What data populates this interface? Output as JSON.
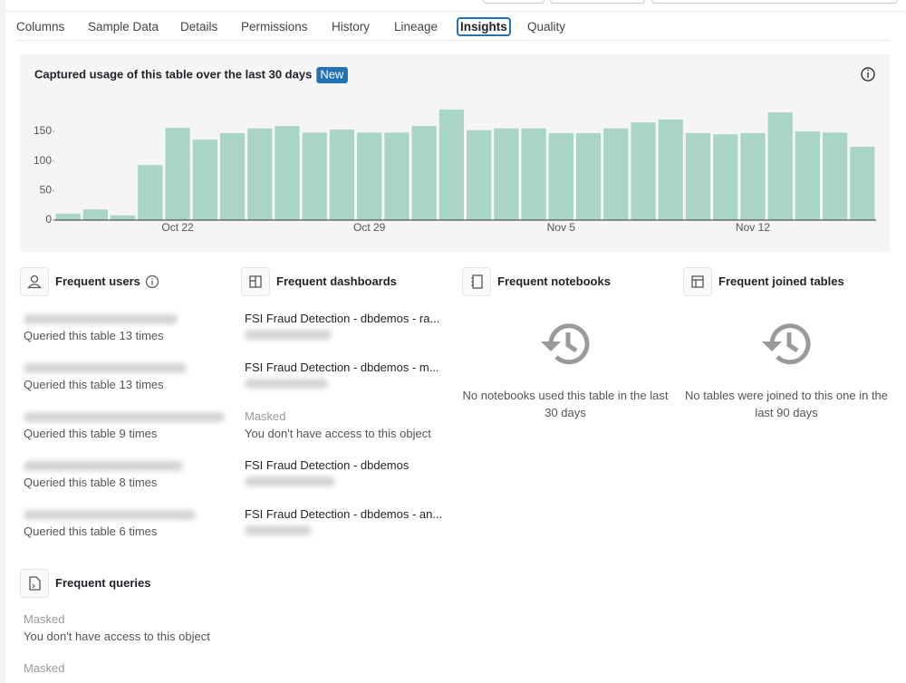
{
  "tabs": [
    "Columns",
    "Sample Data",
    "Details",
    "Permissions",
    "History",
    "Lineage",
    "Insights",
    "Quality"
  ],
  "chart_data": {
    "type": "bar",
    "title": "Captured usage of this table over the last 30 days",
    "badge": "New",
    "categories": [
      null,
      null,
      null,
      null,
      "Oct 22",
      null,
      null,
      null,
      null,
      null,
      null,
      "Oct 29",
      null,
      null,
      null,
      null,
      null,
      null,
      "Nov 5",
      null,
      null,
      null,
      null,
      null,
      null,
      "Nov 12",
      null,
      null,
      null,
      null
    ],
    "values": [
      11,
      18,
      8,
      93,
      156,
      136,
      147,
      155,
      159,
      148,
      153,
      148,
      148,
      159,
      187,
      152,
      155,
      155,
      147,
      147,
      155,
      165,
      170,
      147,
      145,
      147,
      182,
      150,
      148,
      124
    ],
    "color": "#a8d5c5",
    "ylim": [
      0,
      195
    ],
    "yticks": [
      0,
      50,
      100,
      150
    ]
  },
  "frequent_users": {
    "title": "Frequent users",
    "items": [
      "Queried this table 13 times",
      "Queried this table 13 times",
      "Queried this table 9 times",
      "Queried this table 8 times",
      "Queried this table 6 times"
    ]
  },
  "frequent_dashboards": {
    "title": "Frequent dashboards",
    "items": [
      {
        "name": "FSI Fraud Detection - dbdemos - ra..."
      },
      {
        "name": "FSI Fraud Detection - dbdemos - m..."
      },
      {
        "masked": "Masked",
        "message": "You don't have access to this object"
      },
      {
        "name": "FSI Fraud Detection - dbdemos"
      },
      {
        "name": "FSI Fraud Detection - dbdemos - an..."
      }
    ]
  },
  "frequent_notebooks": {
    "title": "Frequent notebooks",
    "empty": "No notebooks used this table in the last 30 days"
  },
  "frequent_joined_tables": {
    "title": "Frequent joined tables",
    "empty": "No tables were joined to this one in the last 90 days"
  },
  "frequent_queries": {
    "title": "Frequent queries",
    "items": [
      {
        "masked": "Masked",
        "message": "You don't have access to this object"
      },
      {
        "masked": "Masked"
      }
    ]
  }
}
